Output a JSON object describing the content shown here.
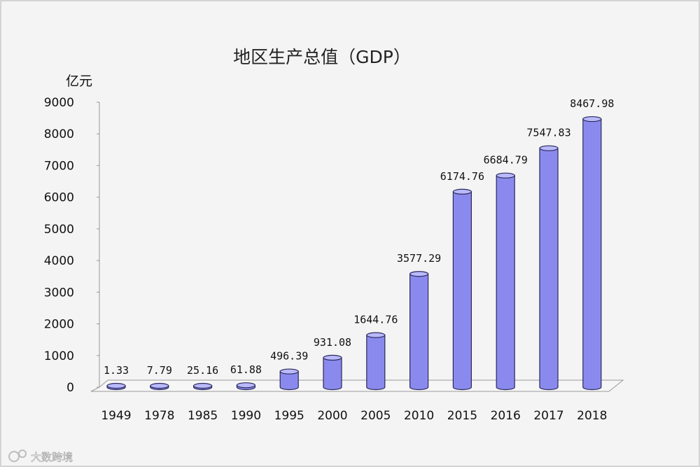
{
  "watermark": "大数跨境",
  "colors": {
    "bar_side": "#8a8aee",
    "bar_top": "#b9b9ff",
    "bar_edge": "#2a2a5a",
    "axis": "#999999"
  },
  "chart_data": {
    "type": "bar",
    "title": "地区生产总值（GDP）",
    "ylabel": "亿元",
    "xlabel": "",
    "categories": [
      "1949",
      "1978",
      "1985",
      "1990",
      "1995",
      "2000",
      "2005",
      "2010",
      "2015",
      "2016",
      "2017",
      "2018"
    ],
    "values": [
      1.33,
      7.79,
      25.16,
      61.88,
      496.39,
      931.08,
      1644.76,
      3577.29,
      6174.76,
      6684.79,
      7547.83,
      8467.98
    ],
    "value_labels": [
      "1.33",
      "7.79",
      "25.16",
      "61.88",
      "496.39",
      "931.08",
      "1644.76",
      "3577.29",
      "6174.76",
      "6684.79",
      "7547.83",
      "8467.98"
    ],
    "ylim": [
      0,
      9000
    ],
    "yticks": [
      0,
      1000,
      2000,
      3000,
      4000,
      5000,
      6000,
      7000,
      8000,
      9000
    ],
    "ytick_labels": [
      "0",
      "1000",
      "2000",
      "3000",
      "4000",
      "5000",
      "6000",
      "7000",
      "8000",
      "9000"
    ],
    "grid": false,
    "style": "3d-cylinder"
  }
}
